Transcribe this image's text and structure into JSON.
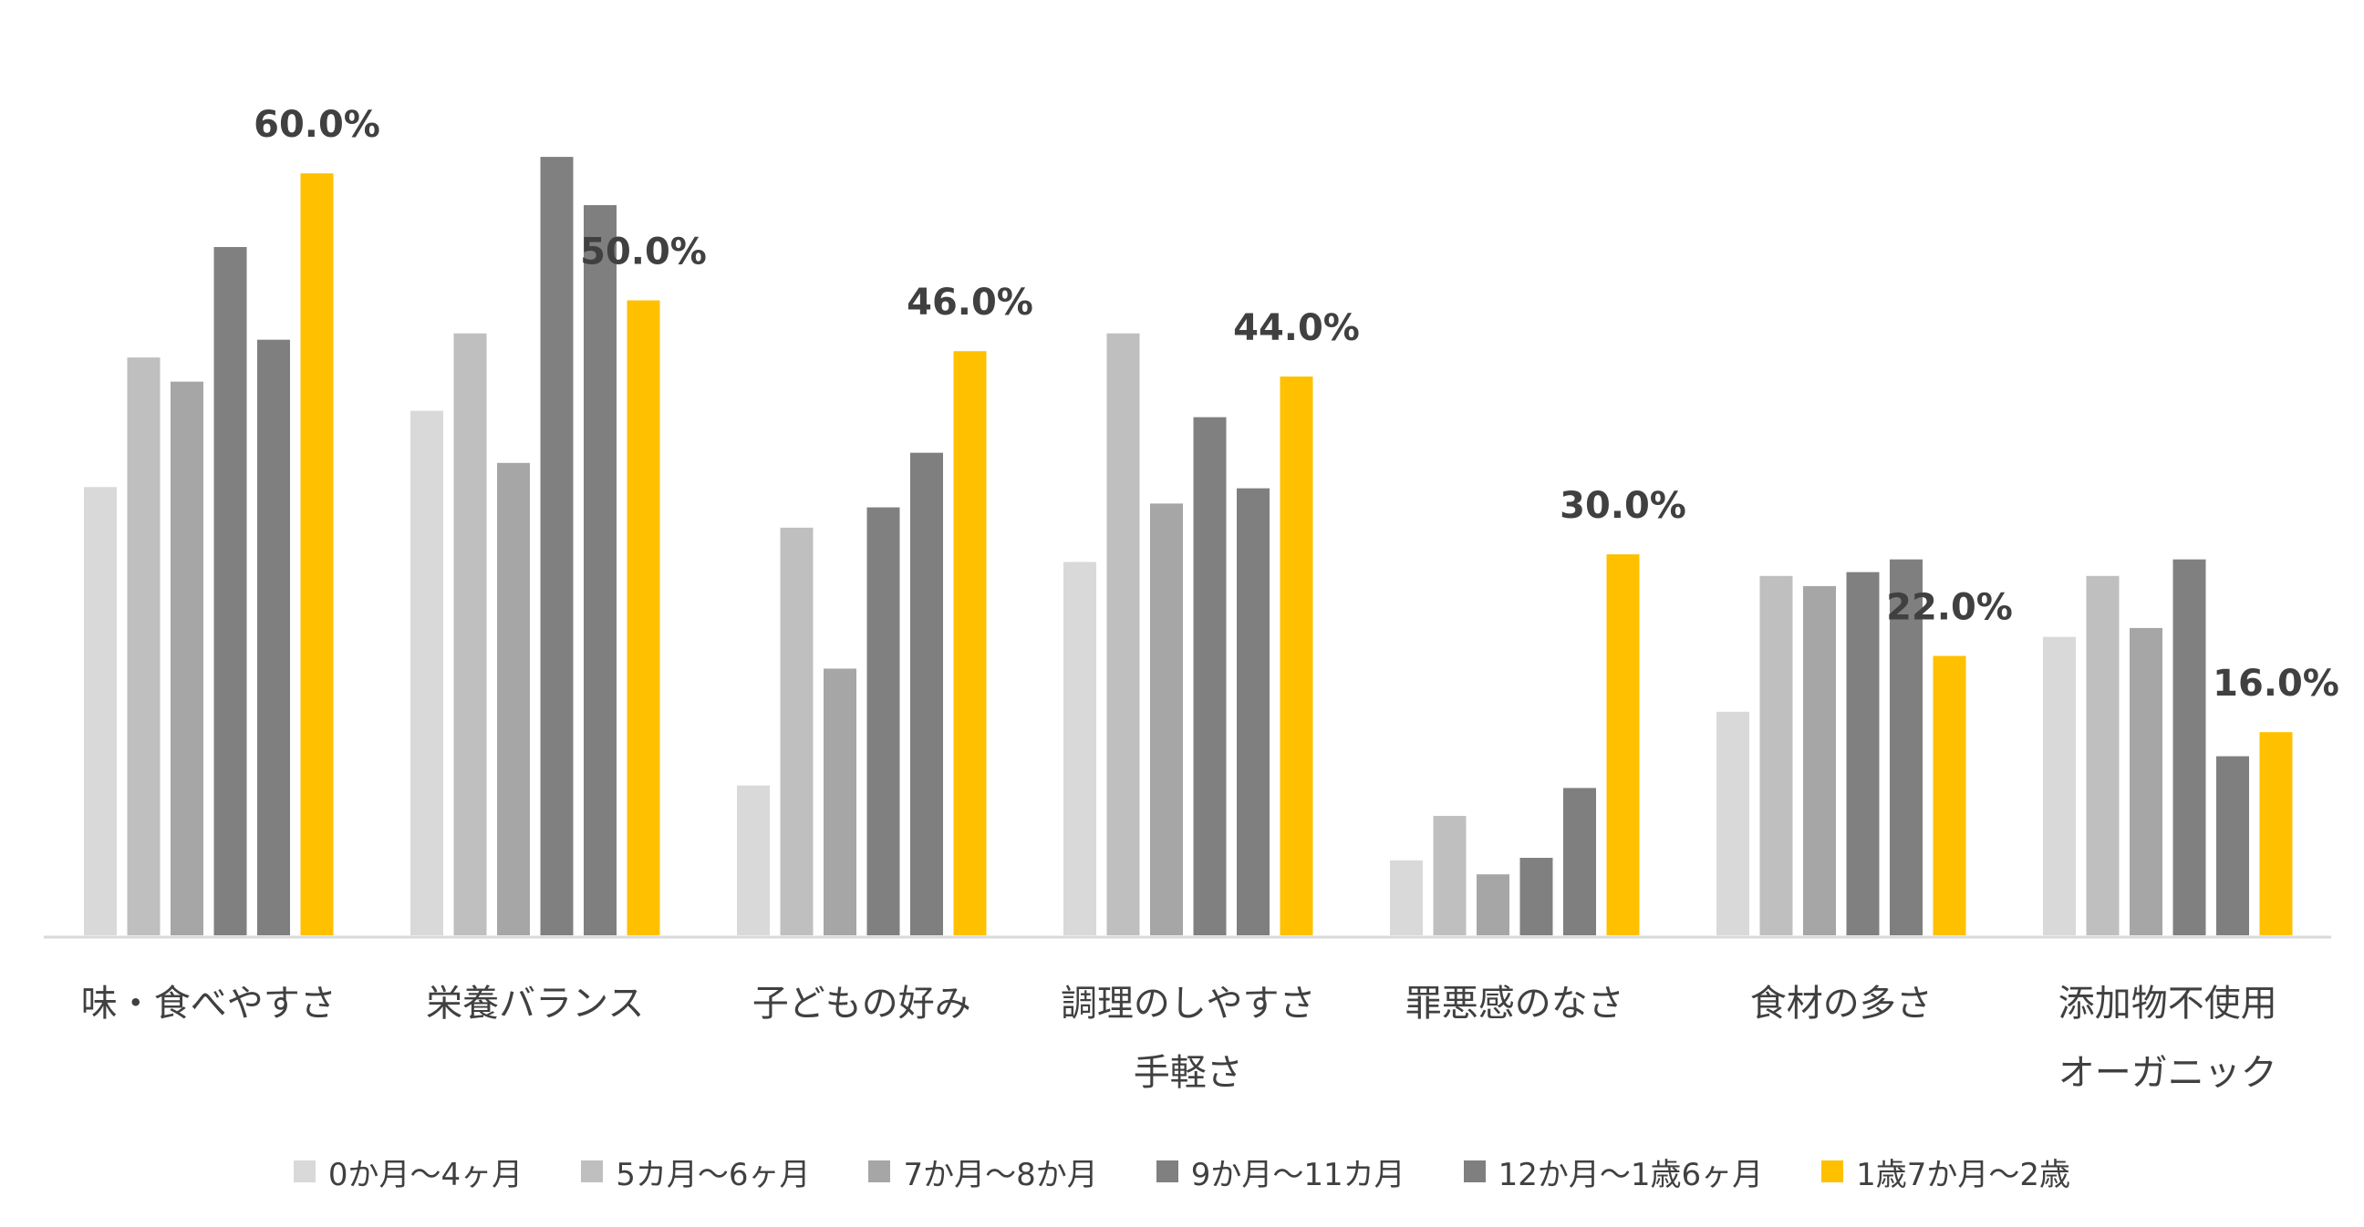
{
  "chart_data": {
    "type": "bar",
    "title": "",
    "xlabel": "",
    "ylabel": "",
    "ylim": [
      0,
      62
    ],
    "grid": false,
    "legend_position": "bottom",
    "categories": [
      [
        "味・食べやすさ"
      ],
      [
        "栄養バランス"
      ],
      [
        "子どもの好み"
      ],
      [
        "調理のしやすさ",
        "手軽さ"
      ],
      [
        "罪悪感のなさ"
      ],
      [
        "食材の多さ"
      ],
      [
        "添加物不使用",
        "オーガニック"
      ]
    ],
    "series": [
      {
        "name": "0か月〜4ヶ月",
        "color": "#d9d9d9",
        "values": [
          35.3,
          41.3,
          11.8,
          29.4,
          5.9,
          17.6,
          23.5
        ]
      },
      {
        "name": "5カ月〜6ヶ月",
        "color": "#bfbfbf",
        "values": [
          45.5,
          47.4,
          32.1,
          47.4,
          9.4,
          28.3,
          28.3
        ]
      },
      {
        "name": "7か月〜8か月",
        "color": "#a6a6a6",
        "values": [
          43.6,
          37.2,
          21.0,
          34.0,
          4.8,
          27.5,
          24.2
        ]
      },
      {
        "name": "9か月〜11カ月",
        "color": "#808080",
        "values": [
          54.2,
          61.3,
          33.7,
          40.8,
          6.1,
          28.6,
          29.6
        ]
      },
      {
        "name": "12か月〜1歳6ヶ月",
        "color": "#7f7f7f",
        "values": [
          46.9,
          57.5,
          38.0,
          35.2,
          11.6,
          29.6,
          14.1
        ]
      },
      {
        "name": "1歳7か月〜2歳",
        "color": "#ffc000",
        "values": [
          60.0,
          50.0,
          46.0,
          44.0,
          30.0,
          22.0,
          16.0
        ],
        "data_labels": [
          "60.0%",
          "50.0%",
          "46.0%",
          "44.0%",
          "30.0%",
          "22.0%",
          "16.0%"
        ]
      }
    ]
  }
}
